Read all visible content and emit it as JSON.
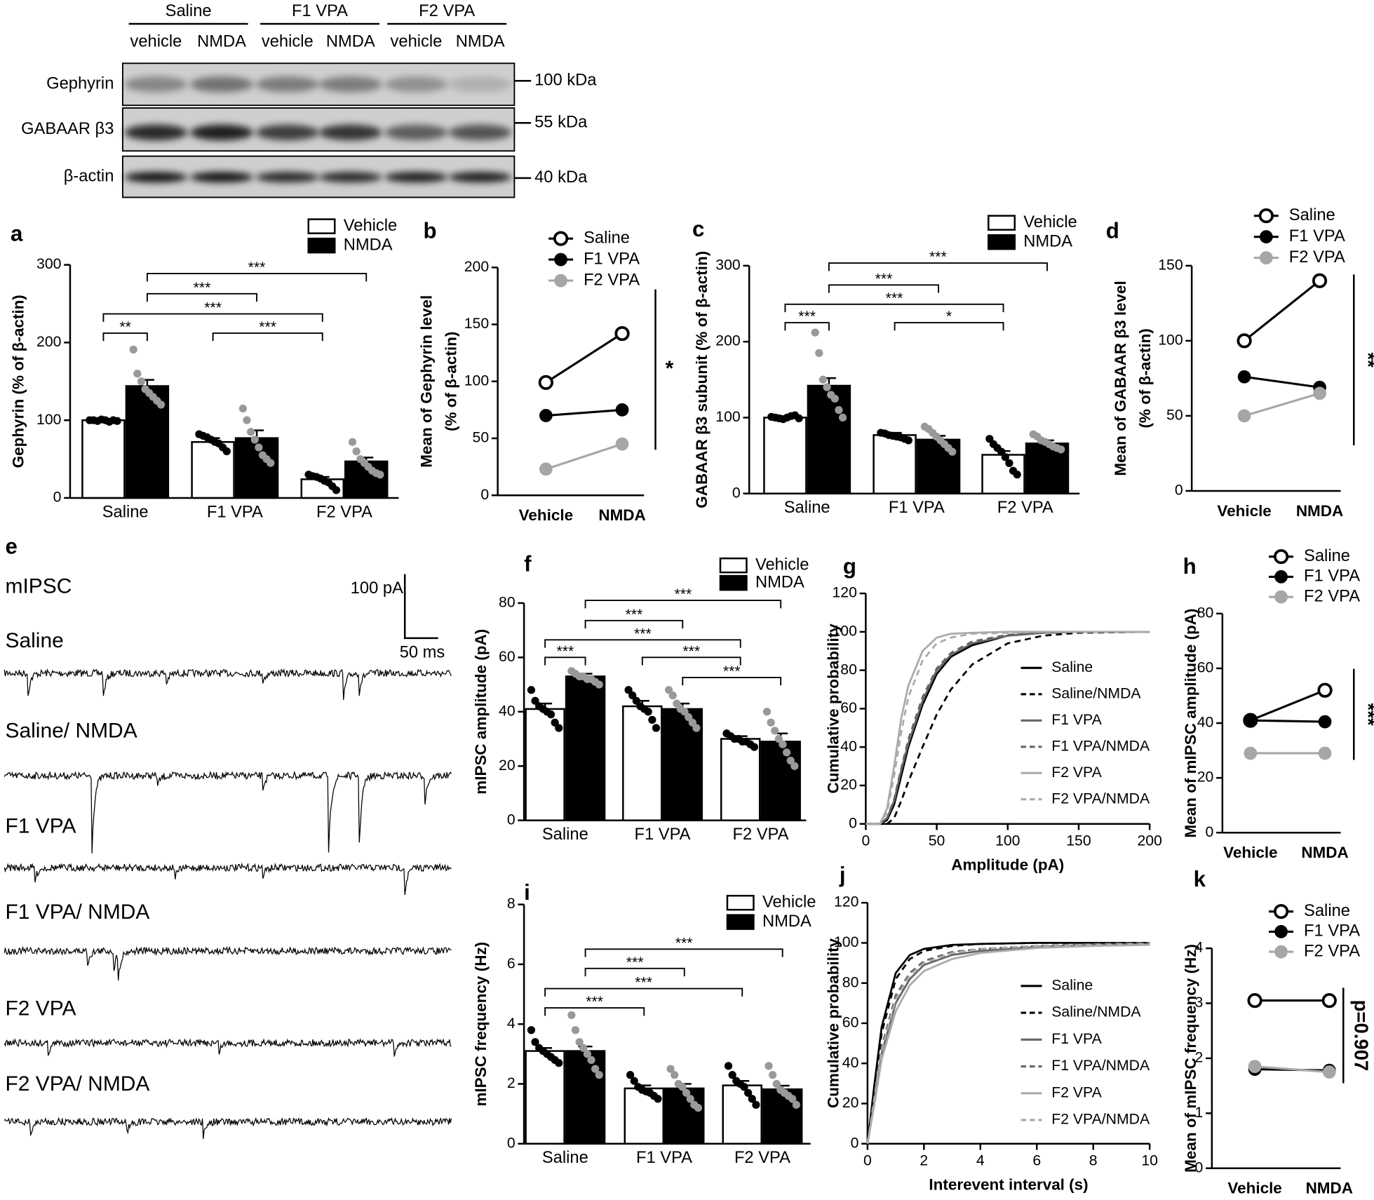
{
  "blot": {
    "groups": [
      "Saline",
      "F1 VPA",
      "F2 VPA"
    ],
    "lanes": [
      "vehicle",
      "NMDA",
      "vehicle",
      "NMDA",
      "vehicle",
      "NMDA"
    ],
    "rows": [
      {
        "label": "Gephyrin",
        "marker": "100 kDa"
      },
      {
        "label": "GABAAR β3",
        "marker": "55 kDa"
      },
      {
        "label": "β-actin",
        "marker": "40 kDa"
      }
    ]
  },
  "traces": {
    "panel": "e",
    "title": "mIPSC",
    "scale_y": "100 pA",
    "scale_x": "50 ms",
    "labels": [
      "Saline",
      "Saline/ NMDA",
      "F1 VPA",
      "F1 VPA/ NMDA",
      "F2 VPA",
      "F2 VPA/ NMDA"
    ]
  },
  "chart_data": [
    {
      "type": "bar",
      "panel": "a",
      "ylabel": "Gephyrin (% of β-actin)",
      "categories": [
        "Saline",
        "F1 VPA",
        "F2 VPA"
      ],
      "ylim": [
        0,
        300
      ],
      "yticks": [
        0,
        100,
        200,
        300
      ],
      "series": [
        {
          "name": "Vehicle",
          "color": "#ffffff",
          "point_color": "#000000",
          "values": [
            100,
            72,
            24
          ],
          "errors": [
            1,
            5,
            3
          ],
          "points": [
            [
              100,
              100,
              99,
              101,
              100,
              98,
              100,
              99
            ],
            [
              82,
              80,
              78,
              75,
              72,
              70,
              65,
              60
            ],
            [
              30,
              28,
              27,
              25,
              22,
              20,
              15,
              10
            ]
          ]
        },
        {
          "name": "NMDA",
          "color": "#000000",
          "point_color": "#999999",
          "values": [
            144,
            77,
            47
          ],
          "errors": [
            8,
            10,
            5
          ],
          "points": [
            [
              191,
              160,
              150,
              140,
              135,
              130,
              125,
              120
            ],
            [
              115,
              100,
              85,
              75,
              65,
              55,
              50,
              45
            ],
            [
              72,
              60,
              50,
              45,
              40,
              35,
              32,
              30
            ]
          ]
        }
      ],
      "annotations": [
        "***",
        "***",
        "***",
        "**",
        "***"
      ]
    },
    {
      "type": "line",
      "panel": "b",
      "ylabel": [
        "Mean of Gephyrin level",
        "(% of β-actin)"
      ],
      "categories": [
        "Vehicle",
        "NMDA"
      ],
      "ylim": [
        0,
        200
      ],
      "yticks": [
        0,
        50,
        100,
        150,
        200
      ],
      "series": [
        {
          "name": "Saline",
          "color": "#000000",
          "marker": "open",
          "values": [
            99,
            142
          ]
        },
        {
          "name": "F1 VPA",
          "color": "#000000",
          "marker": "filled",
          "values": [
            70,
            75
          ]
        },
        {
          "name": "F2 VPA",
          "color": "#a6a6a6",
          "marker": "filled",
          "values": [
            23,
            45
          ]
        }
      ],
      "significance": "*"
    },
    {
      "type": "bar",
      "panel": "c",
      "ylabel": "GABAAR β3 subunit (% of β-actin)",
      "categories": [
        "Saline",
        "F1 VPA",
        "F2 VPA"
      ],
      "ylim": [
        0,
        300
      ],
      "yticks": [
        0,
        100,
        200,
        300
      ],
      "series": [
        {
          "name": "Vehicle",
          "color": "#ffffff",
          "point_color": "#000000",
          "values": [
            100,
            77,
            51
          ],
          "errors": [
            2,
            3,
            5
          ],
          "points": [
            [
              101,
              100,
              99,
              98,
              100,
              102,
              103,
              99
            ],
            [
              80,
              79,
              77,
              76,
              75,
              74,
              72,
              70
            ],
            [
              72,
              65,
              60,
              55,
              48,
              40,
              30,
              25
            ]
          ]
        },
        {
          "name": "NMDA",
          "color": "#000000",
          "point_color": "#999999",
          "values": [
            142,
            71,
            66
          ],
          "errors": [
            10,
            5,
            4
          ],
          "points": [
            [
              212,
              185,
              150,
              140,
              130,
              125,
              110,
              100
            ],
            [
              88,
              85,
              80,
              75,
              70,
              65,
              60,
              55
            ],
            [
              78,
              75,
              70,
              68,
              65,
              62,
              60,
              58
            ]
          ]
        }
      ],
      "annotations": [
        "***",
        "***",
        "***",
        "***",
        "*"
      ]
    },
    {
      "type": "line",
      "panel": "d",
      "ylabel": [
        "Mean of GABAAR β3 level",
        "(% of β-actin)"
      ],
      "categories": [
        "Vehicle",
        "NMDA"
      ],
      "ylim": [
        0,
        150
      ],
      "yticks": [
        0,
        50,
        100,
        150
      ],
      "series": [
        {
          "name": "Saline",
          "color": "#000000",
          "marker": "open",
          "values": [
            100,
            140
          ]
        },
        {
          "name": "F1 VPA",
          "color": "#000000",
          "marker": "filled",
          "values": [
            76,
            69
          ]
        },
        {
          "name": "F2 VPA",
          "color": "#a6a6a6",
          "marker": "filled",
          "values": [
            50,
            65
          ]
        }
      ],
      "significance": "**"
    },
    {
      "type": "bar",
      "panel": "f",
      "ylabel": "mIPSC amplitude (pA)",
      "categories": [
        "Saline",
        "F1 VPA",
        "F2 VPA"
      ],
      "ylim": [
        0,
        80
      ],
      "yticks": [
        0,
        20,
        40,
        60,
        80
      ],
      "series": [
        {
          "name": "Vehicle",
          "color": "#ffffff",
          "point_color": "#000000",
          "values": [
            41,
            42,
            30
          ],
          "errors": [
            2,
            2,
            1
          ],
          "points": [
            [
              48,
              44,
              42,
              41,
              40,
              39,
              36,
              34
            ],
            [
              48,
              46,
              44,
              42,
              41,
              40,
              37,
              34
            ],
            [
              32,
              31,
              30,
              30,
              29,
              29,
              28,
              27
            ]
          ]
        },
        {
          "name": "NMDA",
          "color": "#000000",
          "point_color": "#999999",
          "values": [
            53,
            41,
            29
          ],
          "errors": [
            1,
            2,
            3
          ],
          "points": [
            [
              55,
              54,
              53,
              53,
              52,
              52,
              51,
              50
            ],
            [
              48,
              46,
              43,
              41,
              40,
              38,
              36,
              34
            ],
            [
              40,
              36,
              33,
              30,
              28,
              25,
              22,
              20
            ]
          ]
        }
      ],
      "annotations": [
        "***",
        "***",
        "***",
        "***",
        "***",
        "***"
      ]
    },
    {
      "type": "line",
      "panel": "g",
      "xlabel": "Amplitude (pA)",
      "ylabel": "Cumulative probability",
      "x": [
        0,
        10,
        15,
        20,
        25,
        30,
        40,
        50,
        60,
        75,
        100,
        125,
        150,
        200
      ],
      "xlim": [
        0,
        200
      ],
      "xticks": [
        0,
        50,
        100,
        150,
        200
      ],
      "ylim": [
        0,
        120
      ],
      "yticks": [
        0,
        20,
        40,
        60,
        80,
        100,
        120
      ],
      "series": [
        {
          "name": "Saline",
          "color": "#000000",
          "dash": false,
          "values": [
            0,
            0,
            2,
            10,
            25,
            40,
            62,
            78,
            87,
            93,
            98,
            99.5,
            100,
            100
          ]
        },
        {
          "name": "Saline/NMDA",
          "color": "#000000",
          "dash": true,
          "values": [
            0,
            0,
            0,
            3,
            12,
            22,
            40,
            57,
            70,
            83,
            94,
            98,
            99.5,
            100
          ]
        },
        {
          "name": "F1 VPA",
          "color": "#666666",
          "dash": false,
          "values": [
            0,
            0,
            3,
            12,
            28,
            42,
            64,
            80,
            88,
            94,
            98,
            99.5,
            100,
            100
          ]
        },
        {
          "name": "F1 VPA/NMDA",
          "color": "#666666",
          "dash": true,
          "values": [
            0,
            0,
            3,
            13,
            29,
            44,
            66,
            81,
            89,
            95,
            98.5,
            99.5,
            100,
            100
          ]
        },
        {
          "name": "F2 VPA",
          "color": "#aaaaaa",
          "dash": false,
          "values": [
            0,
            0,
            8,
            30,
            55,
            72,
            90,
            97,
            99,
            99.5,
            100,
            100,
            100,
            100
          ]
        },
        {
          "name": "F2 VPA/NMDA",
          "color": "#aaaaaa",
          "dash": true,
          "values": [
            0,
            0,
            6,
            25,
            48,
            66,
            85,
            94,
            97,
            99,
            99.5,
            100,
            100,
            100
          ]
        }
      ]
    },
    {
      "type": "line",
      "panel": "h",
      "ylabel": "Mean of mIPSC amplitude (pA)",
      "categories": [
        "Vehicle",
        "NMDA"
      ],
      "ylim": [
        0,
        80
      ],
      "yticks": [
        0,
        20,
        40,
        60,
        80
      ],
      "series": [
        {
          "name": "Saline",
          "color": "#000000",
          "marker": "open",
          "values": [
            41,
            52
          ]
        },
        {
          "name": "F1 VPA",
          "color": "#000000",
          "marker": "filled",
          "values": [
            41,
            40.5
          ]
        },
        {
          "name": "F2 VPA",
          "color": "#a6a6a6",
          "marker": "filled",
          "values": [
            29,
            29
          ]
        }
      ],
      "significance": "***"
    },
    {
      "type": "bar",
      "panel": "i",
      "ylabel": "mIPSC frequency (Hz)",
      "categories": [
        "Saline",
        "F1 VPA",
        "F2 VPA"
      ],
      "ylim": [
        0,
        8
      ],
      "yticks": [
        0,
        2,
        4,
        6,
        8
      ],
      "series": [
        {
          "name": "Vehicle",
          "color": "#ffffff",
          "point_color": "#000000",
          "values": [
            3.1,
            1.85,
            1.95
          ],
          "errors": [
            0.1,
            0.1,
            0.15
          ],
          "points": [
            [
              3.8,
              3.4,
              3.2,
              3.1,
              3.0,
              2.9,
              2.8,
              2.7
            ],
            [
              2.3,
              2.1,
              1.9,
              1.8,
              1.75,
              1.7,
              1.6,
              1.5
            ],
            [
              2.6,
              2.3,
              2.1,
              2.0,
              1.9,
              1.7,
              1.5,
              1.3
            ]
          ]
        },
        {
          "name": "NMDA",
          "color": "#000000",
          "point_color": "#999999",
          "values": [
            3.1,
            1.85,
            1.82
          ],
          "errors": [
            0.15,
            0.15,
            0.12
          ],
          "points": [
            [
              4.3,
              3.8,
              3.4,
              3.2,
              3.0,
              2.8,
              2.5,
              2.3
            ],
            [
              2.5,
              2.3,
              2.0,
              1.9,
              1.7,
              1.5,
              1.3,
              1.2
            ],
            [
              2.6,
              2.3,
              2.0,
              1.8,
              1.7,
              1.6,
              1.5,
              1.3
            ]
          ]
        }
      ],
      "annotations": [
        "***",
        "***",
        "***",
        "***"
      ]
    },
    {
      "type": "line",
      "panel": "j",
      "xlabel": "Interevent interval (s)",
      "ylabel": "Cumulative probability",
      "x": [
        0,
        0.25,
        0.5,
        1,
        1.5,
        2,
        3,
        4,
        6,
        8,
        10
      ],
      "xlim": [
        0,
        10
      ],
      "xticks": [
        0,
        2,
        4,
        6,
        8,
        10
      ],
      "ylim": [
        0,
        120
      ],
      "yticks": [
        0,
        20,
        40,
        60,
        80,
        100,
        120
      ],
      "series": [
        {
          "name": "Saline",
          "color": "#000000",
          "dash": false,
          "values": [
            0,
            30,
            58,
            85,
            94,
            97,
            99,
            99.5,
            100,
            100,
            100
          ]
        },
        {
          "name": "Saline/NMDA",
          "color": "#000000",
          "dash": true,
          "values": [
            0,
            28,
            55,
            82,
            92,
            96,
            98.5,
            99.5,
            100,
            100,
            100
          ]
        },
        {
          "name": "F1 VPA",
          "color": "#666666",
          "dash": false,
          "values": [
            0,
            22,
            45,
            70,
            82,
            89,
            94,
            96,
            98,
            99,
            99.5
          ]
        },
        {
          "name": "F1 VPA/NMDA",
          "color": "#666666",
          "dash": true,
          "values": [
            0,
            24,
            48,
            74,
            85,
            91,
            95.5,
            97,
            98.5,
            99.5,
            100
          ]
        },
        {
          "name": "F2 VPA",
          "color": "#aaaaaa",
          "dash": false,
          "values": [
            0,
            20,
            42,
            66,
            79,
            86,
            92,
            95,
            97.5,
            98.5,
            99
          ]
        },
        {
          "name": "F2 VPA/NMDA",
          "color": "#aaaaaa",
          "dash": true,
          "values": [
            0,
            23,
            46,
            72,
            84,
            90,
            95,
            97,
            98.5,
            99,
            99.5
          ]
        }
      ]
    },
    {
      "type": "line",
      "panel": "k",
      "ylabel": "Mean of mIPSC frequency (Hz)",
      "categories": [
        "Vehicle",
        "NMDA"
      ],
      "ylim": [
        0,
        4
      ],
      "yticks": [
        0,
        1,
        2,
        3,
        4
      ],
      "series": [
        {
          "name": "Saline",
          "color": "#000000",
          "marker": "open",
          "values": [
            3.05,
            3.05
          ]
        },
        {
          "name": "F1 VPA",
          "color": "#000000",
          "marker": "filled",
          "values": [
            1.8,
            1.78
          ]
        },
        {
          "name": "F2 VPA",
          "color": "#a6a6a6",
          "marker": "filled",
          "values": [
            1.85,
            1.75
          ]
        }
      ],
      "significance": "p=0.907"
    }
  ]
}
